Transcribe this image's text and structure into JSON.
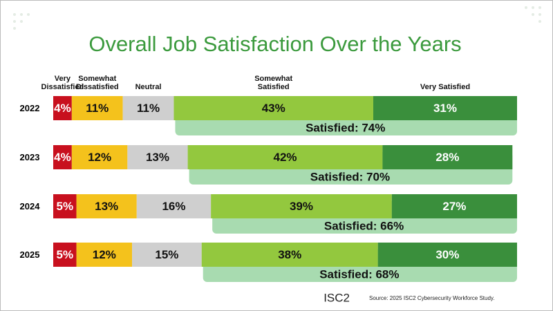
{
  "chart_data": {
    "type": "stacked-bar",
    "orientation": "horizontal",
    "title": "Overall Job Satisfaction Over the Years",
    "categories": [
      "2022",
      "2023",
      "2024",
      "2025"
    ],
    "xlim": [
      0,
      100
    ],
    "series": [
      {
        "name": "Very Dissatisfied",
        "color": "#c8101e",
        "text_color": "#ffffff",
        "values": [
          4,
          4,
          5,
          5
        ],
        "value_labels": [
          "4%",
          "4%",
          "5%",
          "5%"
        ]
      },
      {
        "name": "Somewhat Dissatisfied",
        "color": "#f4c21c",
        "text_color": "#111111",
        "values": [
          11,
          12,
          13,
          12
        ],
        "value_labels": [
          "11%",
          "12%",
          "13%",
          "12%"
        ]
      },
      {
        "name": "Neutral",
        "color": "#cfcfcf",
        "text_color": "#111111",
        "values": [
          11,
          13,
          16,
          15
        ],
        "value_labels": [
          "11%",
          "13%",
          "16%",
          "15%"
        ]
      },
      {
        "name": "Somewhat Satisfied",
        "color": "#93c83e",
        "text_color": "#111111",
        "values": [
          43,
          42,
          39,
          38
        ],
        "value_labels": [
          "43%",
          "42%",
          "39%",
          "38%"
        ]
      },
      {
        "name": "Very Satisfied",
        "color": "#3a8f3c",
        "text_color": "#ffffff",
        "values": [
          31,
          28,
          27,
          30
        ],
        "value_labels": [
          "31%",
          "28%",
          "27%",
          "30%"
        ]
      }
    ],
    "satisfied": {
      "color": "#a8dbb0",
      "values": [
        74,
        70,
        66,
        68
      ],
      "value_labels": [
        "Satisfied: 74%",
        "Satisfied: 70%",
        "Satisfied: 66%",
        "Satisfied: 68%"
      ]
    },
    "logo": "ISC2",
    "source": "Source: 2025 ISC2 Cybersecurity Workforce Study."
  }
}
